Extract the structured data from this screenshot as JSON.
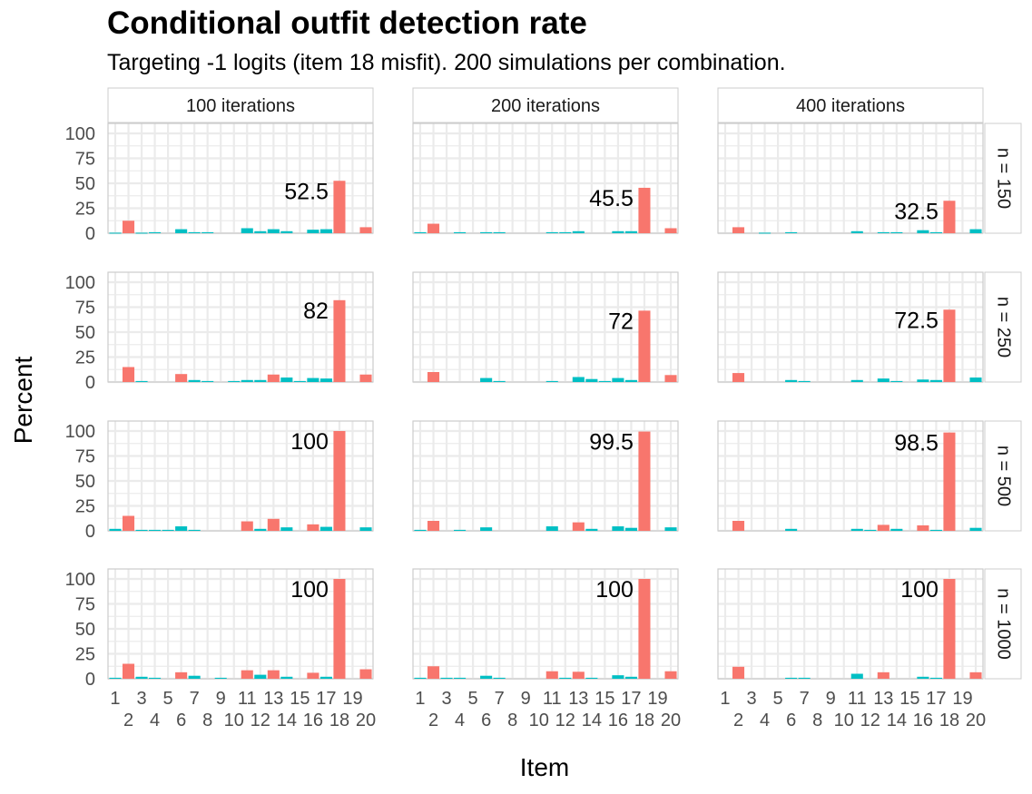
{
  "title": "Conditional outfit detection rate",
  "subtitle": "Targeting -1 logits (item 18 misfit). 200 simulations per combination.",
  "colors": {
    "highlight": "#F8766D",
    "other": "#00BFC4",
    "panel_border": "#CCCCCC",
    "grid": "#EBEBEB",
    "strip_bg": "#FFFFFF"
  },
  "chart_data": {
    "type": "bar",
    "facet_type": "grid",
    "xlabel": "Item",
    "ylabel": "Percent",
    "ylim": [
      0,
      110
    ],
    "y_ticks": [
      0,
      25,
      50,
      75,
      100
    ],
    "x_categories": [
      1,
      2,
      3,
      4,
      5,
      6,
      7,
      8,
      9,
      10,
      11,
      12,
      13,
      14,
      15,
      16,
      17,
      18,
      19,
      20
    ],
    "x_tick_labels_top": [
      "1",
      "3",
      "5",
      "7",
      "9",
      "11",
      "13",
      "15",
      "17",
      "19"
    ],
    "x_tick_labels_bottom": [
      "2",
      "4",
      "6",
      "8",
      "10",
      "12",
      "14",
      "16",
      "18",
      "20"
    ],
    "column_facets": [
      "100 iterations",
      "200 iterations",
      "400 iterations"
    ],
    "row_facets": [
      "n = 150",
      "n = 250",
      "n = 500",
      "n = 1000"
    ],
    "fill_rule": "red where item is 2, 6, 11, 13, 16, 18, 20 with value; bars colored by highlight flag",
    "panels": [
      {
        "col": 0,
        "row": 0,
        "label": "52.5",
        "values": [
          0.5,
          12.5,
          0.5,
          1,
          0,
          4,
          1,
          1,
          0,
          0,
          5,
          2,
          4,
          2,
          0,
          3.5,
          4,
          52.5,
          0,
          6
        ],
        "red": [
          2,
          18,
          20
        ]
      },
      {
        "col": 1,
        "row": 0,
        "label": "45.5",
        "values": [
          1,
          9.5,
          0,
          1,
          0,
          1,
          1,
          0,
          0,
          0,
          1,
          1,
          2,
          0,
          0,
          2,
          2,
          45.5,
          0,
          5
        ],
        "red": [
          2,
          18,
          20
        ]
      },
      {
        "col": 2,
        "row": 0,
        "label": "32.5",
        "values": [
          0,
          6,
          0,
          0.5,
          0,
          1,
          0,
          0,
          0,
          0,
          2,
          0,
          1,
          1,
          0,
          3,
          1,
          32.5,
          0,
          4
        ],
        "red": [
          2,
          18
        ]
      },
      {
        "col": 0,
        "row": 1,
        "label": "82",
        "values": [
          0,
          15,
          1,
          0,
          0,
          8,
          2,
          1,
          0,
          1,
          2,
          2,
          7.5,
          4.5,
          1,
          4,
          3.5,
          82,
          0,
          7.5
        ],
        "red": [
          2,
          6,
          13,
          18,
          20
        ]
      },
      {
        "col": 1,
        "row": 1,
        "label": "72",
        "values": [
          0,
          10,
          0,
          0,
          0,
          4,
          1,
          0,
          0,
          0,
          1,
          0,
          5,
          3,
          1,
          4,
          2,
          71.5,
          0,
          7
        ],
        "red": [
          2,
          18,
          20
        ]
      },
      {
        "col": 2,
        "row": 1,
        "label": "72.5",
        "values": [
          0,
          9,
          0,
          0,
          0,
          2,
          1,
          0,
          0,
          0,
          2,
          0,
          3.5,
          1,
          0,
          2.5,
          2,
          72.5,
          0,
          4.5
        ],
        "red": [
          2,
          18
        ]
      },
      {
        "col": 0,
        "row": 2,
        "label": "100",
        "values": [
          2,
          15,
          1,
          1,
          1,
          4.5,
          1,
          0,
          0,
          0,
          9.5,
          2,
          12,
          3.5,
          0,
          6.5,
          4,
          100,
          0,
          3.5
        ],
        "red": [
          2,
          11,
          13,
          16,
          18
        ]
      },
      {
        "col": 1,
        "row": 2,
        "label": "99.5",
        "values": [
          1,
          10,
          0,
          1,
          0,
          3.5,
          0,
          0,
          0,
          0,
          4.5,
          0,
          8.5,
          2,
          0,
          4.5,
          3,
          99.5,
          0,
          3.5
        ],
        "red": [
          2,
          13,
          18
        ]
      },
      {
        "col": 2,
        "row": 2,
        "label": "98.5",
        "values": [
          0,
          10,
          0,
          0,
          0,
          2,
          0,
          0,
          0,
          0,
          2,
          1,
          6,
          2,
          0,
          5.5,
          1,
          98.5,
          0,
          3
        ],
        "red": [
          2,
          13,
          16,
          18
        ]
      },
      {
        "col": 0,
        "row": 3,
        "label": "100",
        "values": [
          1,
          15,
          2,
          1,
          0,
          6.5,
          3,
          0,
          1,
          0,
          8.5,
          4,
          8.5,
          2,
          0,
          6,
          2,
          100,
          0,
          9.5
        ],
        "red": [
          2,
          6,
          11,
          13,
          16,
          18,
          20
        ]
      },
      {
        "col": 1,
        "row": 3,
        "label": "100",
        "values": [
          1,
          12.5,
          1,
          1,
          0,
          3,
          1,
          0,
          0,
          0,
          7.5,
          1,
          7,
          1,
          0,
          3.5,
          2,
          100,
          0,
          7.5
        ],
        "red": [
          2,
          11,
          13,
          18,
          20
        ]
      },
      {
        "col": 2,
        "row": 3,
        "label": "100",
        "values": [
          0,
          12,
          0,
          0,
          0,
          1,
          1,
          0,
          0,
          0,
          5,
          0,
          6.5,
          0,
          0,
          2,
          1,
          100,
          0,
          6.5
        ],
        "red": [
          2,
          13,
          18,
          20
        ]
      }
    ]
  }
}
